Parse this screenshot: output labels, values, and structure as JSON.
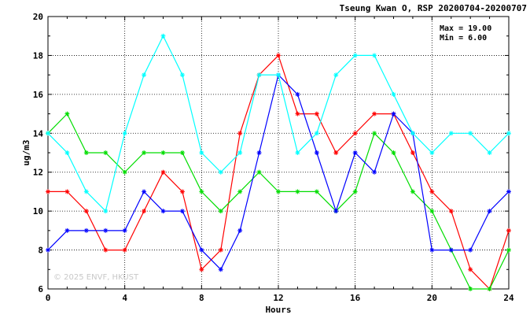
{
  "chart_data": {
    "type": "line",
    "title": "Tseung Kwan O, RSP 20200704-20200707",
    "xlabel": "Hours",
    "ylabel": "ug/m3",
    "xlim": [
      0,
      24
    ],
    "ylim": [
      6,
      20
    ],
    "x_ticks": [
      "0",
      "4",
      "8",
      "12",
      "16",
      "20",
      "24"
    ],
    "y_ticks": [
      "6",
      "8",
      "10",
      "12",
      "14",
      "16",
      "18",
      "20"
    ],
    "grid": true,
    "x": [
      0,
      1,
      2,
      3,
      4,
      5,
      6,
      7,
      8,
      9,
      10,
      11,
      12,
      13,
      14,
      15,
      16,
      17,
      18,
      19,
      20,
      21,
      22,
      23,
      24
    ],
    "series": [
      {
        "color": "#ff0000",
        "values": [
          11,
          11,
          10,
          8,
          8,
          10,
          12,
          11,
          7,
          8,
          14,
          17,
          18,
          15,
          15,
          13,
          14,
          15,
          15,
          13,
          11,
          10,
          7,
          6,
          9
        ]
      },
      {
        "color": "#00dd00",
        "values": [
          14,
          15,
          13,
          13,
          12,
          13,
          13,
          13,
          11,
          10,
          11,
          12,
          11,
          11,
          11,
          10,
          11,
          14,
          13,
          11,
          10,
          8,
          6,
          6,
          8
        ]
      },
      {
        "color": "#0000ff",
        "values": [
          8,
          9,
          9,
          9,
          9,
          11,
          10,
          10,
          8,
          7,
          9,
          13,
          17,
          16,
          13,
          10,
          13,
          12,
          15,
          14,
          8,
          8,
          8,
          10,
          11
        ]
      },
      {
        "color": "#00ffff",
        "values": [
          14,
          13,
          11,
          10,
          14,
          17,
          19,
          17,
          13,
          12,
          13,
          17,
          17,
          13,
          14,
          17,
          18,
          18,
          16,
          14,
          13,
          14,
          14,
          13,
          14
        ]
      }
    ],
    "annotations": {
      "max": "Max = 19.00",
      "min": "Min =  6.00"
    }
  },
  "watermark": "© 2025  ENVF, HKUST"
}
